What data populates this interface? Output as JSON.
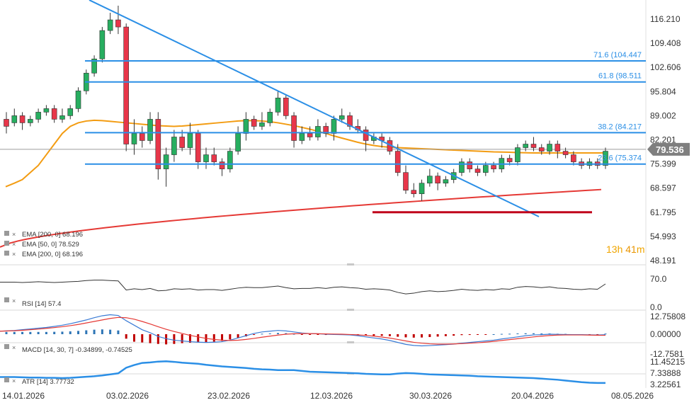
{
  "colors": {
    "candle_up": "#27ae60",
    "candle_down": "#e8364a",
    "trendline": "#2b8fe6",
    "fib": "#2b8fe6",
    "ema200": "#e53935",
    "ema50": "#f39c12",
    "support": "#c0001a",
    "rsi": "#333333",
    "macd_line": "#3a7bd5",
    "macd_signal": "#e53935",
    "macd_hist_up": "#2e75b6",
    "macd_hist_down": "#c00000",
    "atr": "#2b8fe6",
    "price_tag": "#7f7f7f"
  },
  "countdown": {
    "hours": "13",
    "h": "h",
    "minutes": "41",
    "m": "m"
  },
  "chart_data": [
    {
      "type": "candlestick",
      "panel": "price",
      "x": [
        "14.01.2026",
        "03.02.2026",
        "23.02.2026",
        "12.03.2026",
        "30.03.2026",
        "20.04.2026",
        "08.05.2026"
      ],
      "y_ticks": [
        "116.210",
        "109.408",
        "102.606",
        "95.804",
        "89.002",
        "82.201",
        "75.399",
        "68.597",
        "61.795",
        "54.993",
        "48.191"
      ],
      "ylim": [
        48.191,
        120
      ],
      "last_price": "79.536",
      "candles": [
        [
          88,
          86,
          90,
          84
        ],
        [
          87,
          89,
          91,
          86
        ],
        [
          89,
          87,
          90,
          85
        ],
        [
          87,
          88,
          89,
          86
        ],
        [
          88,
          90,
          91,
          87
        ],
        [
          90,
          91,
          92,
          89
        ],
        [
          91,
          88,
          92,
          87
        ],
        [
          88,
          89,
          91,
          87
        ],
        [
          89,
          91,
          92,
          88
        ],
        [
          91,
          96,
          97,
          90
        ],
        [
          96,
          101,
          102,
          95
        ],
        [
          101,
          105,
          106,
          100
        ],
        [
          105,
          113,
          114,
          104
        ],
        [
          113,
          116,
          118,
          112
        ],
        [
          116,
          114,
          120,
          112
        ],
        [
          114,
          81,
          115,
          79
        ],
        [
          81,
          84,
          88,
          78
        ],
        [
          84,
          82,
          86,
          80
        ],
        [
          82,
          88,
          90,
          81
        ],
        [
          88,
          74,
          90,
          71
        ],
        [
          74,
          78,
          80,
          69
        ],
        [
          78,
          83,
          85,
          76
        ],
        [
          83,
          80,
          85,
          79
        ],
        [
          80,
          84,
          87,
          78
        ],
        [
          84,
          76,
          85,
          74
        ],
        [
          76,
          78,
          80,
          74
        ],
        [
          78,
          76,
          80,
          75
        ],
        [
          76,
          74,
          77,
          72
        ],
        [
          74,
          79,
          80,
          73
        ],
        [
          79,
          84,
          86,
          78
        ],
        [
          84,
          88,
          90,
          82
        ],
        [
          88,
          86,
          89,
          85
        ],
        [
          86,
          87,
          90,
          85
        ],
        [
          87,
          90,
          91,
          86
        ],
        [
          90,
          94,
          96,
          89
        ],
        [
          94,
          89,
          95,
          88
        ],
        [
          89,
          82,
          90,
          80
        ],
        [
          82,
          84,
          86,
          81
        ],
        [
          84,
          83,
          86,
          82
        ],
        [
          83,
          86,
          88,
          82
        ],
        [
          86,
          84,
          87,
          83
        ],
        [
          84,
          88,
          89,
          82
        ],
        [
          88,
          89,
          91,
          87
        ],
        [
          89,
          86,
          90,
          85
        ],
        [
          86,
          85,
          88,
          84
        ],
        [
          85,
          82,
          86,
          79
        ],
        [
          82,
          83,
          84,
          81
        ],
        [
          83,
          82,
          84,
          80
        ],
        [
          82,
          79,
          83,
          78
        ],
        [
          79,
          73,
          81,
          72
        ],
        [
          73,
          68,
          75,
          67
        ],
        [
          68,
          67,
          70,
          66
        ],
        [
          67,
          70,
          71,
          65
        ],
        [
          70,
          72,
          74,
          69
        ],
        [
          72,
          70,
          73,
          68
        ],
        [
          70,
          71,
          72,
          69
        ],
        [
          71,
          73,
          74,
          70
        ],
        [
          73,
          76,
          77,
          72
        ],
        [
          76,
          74,
          77,
          73
        ],
        [
          74,
          73,
          75,
          72
        ],
        [
          73,
          75,
          76,
          72
        ],
        [
          75,
          74,
          76,
          73
        ],
        [
          74,
          77,
          78,
          73
        ],
        [
          77,
          76,
          78,
          75
        ],
        [
          76,
          80,
          81,
          75
        ],
        [
          80,
          81,
          82,
          79
        ],
        [
          81,
          80,
          83,
          79
        ],
        [
          80,
          79,
          81,
          78
        ],
        [
          79,
          81,
          82,
          78
        ],
        [
          81,
          79,
          82,
          77
        ],
        [
          79,
          78,
          80,
          77
        ],
        [
          78,
          76,
          79,
          75
        ],
        [
          76,
          75,
          77,
          74
        ],
        [
          75,
          76,
          77,
          74
        ],
        [
          76,
          75,
          77,
          74
        ],
        [
          75,
          79,
          80,
          74
        ]
      ],
      "overlays": [
        {
          "name": "EMA [200, 0] 68.196",
          "value": 68.196
        },
        {
          "name": "EMA [50, 0] 78.529",
          "value": 78.529
        },
        {
          "name": "EMA [200, 0] 68.196",
          "value": 68.196
        }
      ],
      "fib_levels": [
        {
          "label": "71.6 (104.447",
          "value": 104.447
        },
        {
          "label": "61.8 (98.511",
          "value": 98.511
        },
        {
          "label": "38.2 (84.217",
          "value": 84.217
        },
        {
          "label": "23.6 (75.374",
          "value": 75.374
        }
      ],
      "support_level": 61.795
    },
    {
      "type": "line",
      "panel": "rsi",
      "name": "RSI [14] 57.4",
      "y_ticks": [
        "70.0",
        "0.0"
      ],
      "last_value": 57.4
    },
    {
      "type": "line+bar",
      "panel": "macd",
      "name": "MACD [14, 30, 7] -0.34899, -0.74525",
      "y_ticks": [
        "12.75808",
        "0.00000",
        "-12.7581"
      ],
      "macd": -0.34899,
      "signal": -0.74525
    },
    {
      "type": "line",
      "panel": "atr",
      "name": "ATR [14] 3.77732",
      "y_ticks": [
        "11.45215",
        "7.33888",
        "3.22561"
      ],
      "last_value": 3.77732
    }
  ]
}
